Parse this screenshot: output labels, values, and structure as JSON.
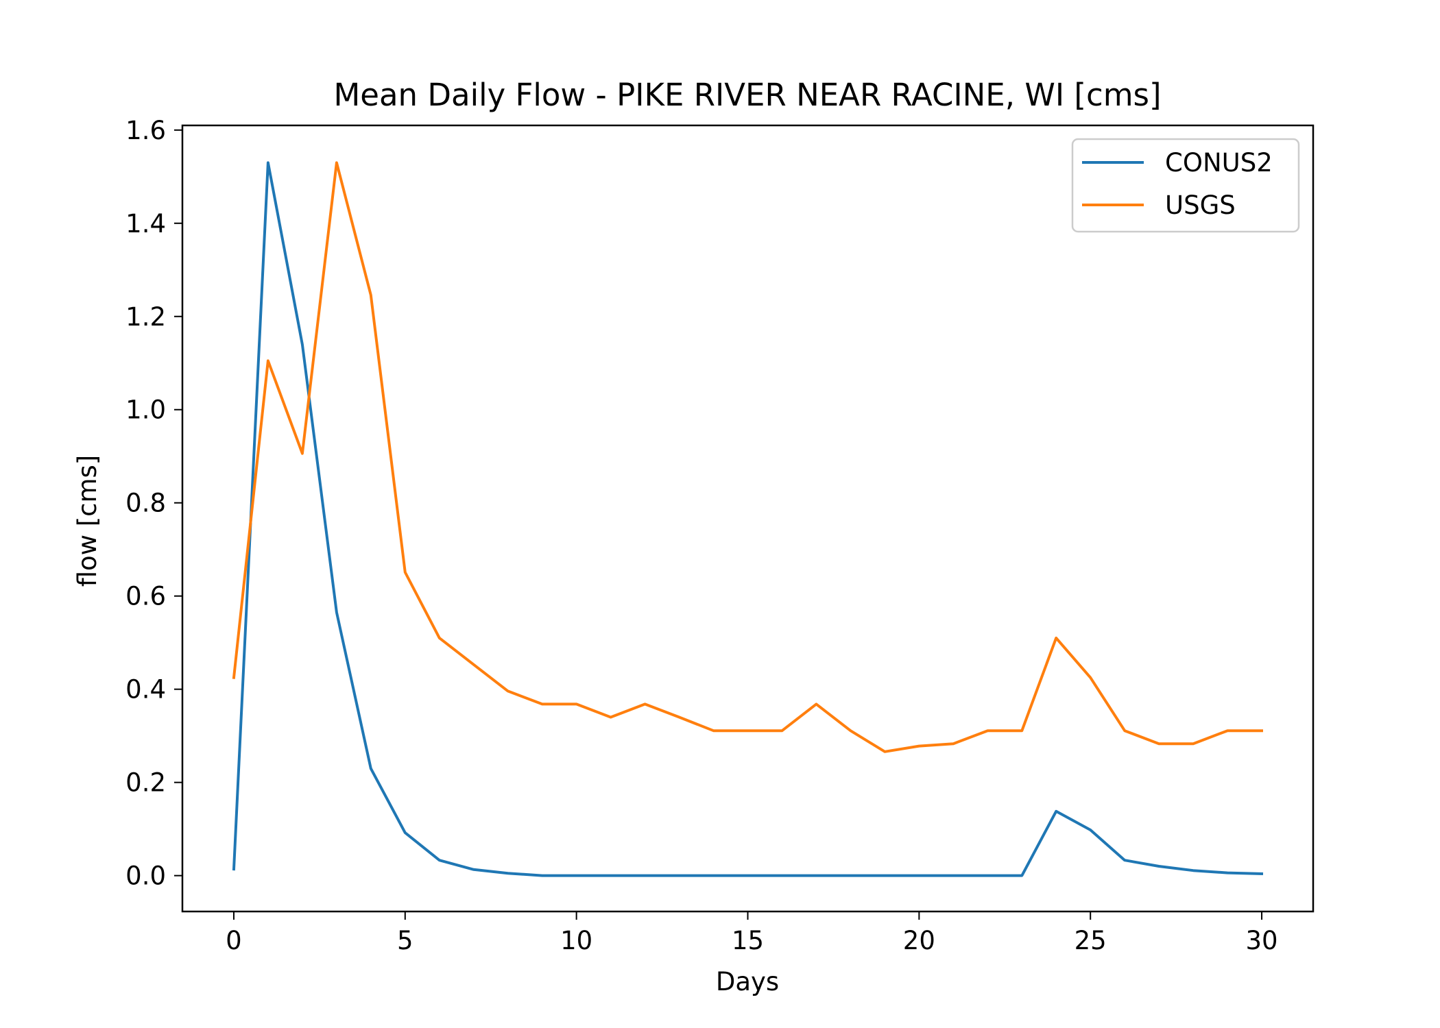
{
  "chart_data": {
    "type": "line",
    "title": "Mean Daily Flow - PIKE RIVER NEAR RACINE, WI [cms]",
    "xlabel": "Days",
    "ylabel": "flow [cms]",
    "xlim": [
      -1.5,
      31.5
    ],
    "ylim": [
      -0.077,
      1.61
    ],
    "xticks": [
      0,
      5,
      10,
      15,
      20,
      25,
      30
    ],
    "xtick_labels": [
      "0",
      "5",
      "10",
      "15",
      "20",
      "25",
      "30"
    ],
    "yticks": [
      0.0,
      0.2,
      0.4,
      0.6,
      0.8,
      1.0,
      1.2,
      1.4,
      1.6
    ],
    "ytick_labels": [
      "0.0",
      "0.2",
      "0.4",
      "0.6",
      "0.8",
      "1.0",
      "1.2",
      "1.4",
      "1.6"
    ],
    "grid": false,
    "legend_position": "top-right",
    "x": [
      0,
      1,
      2,
      3,
      4,
      5,
      6,
      7,
      8,
      9,
      10,
      11,
      12,
      13,
      14,
      15,
      16,
      17,
      18,
      19,
      20,
      21,
      22,
      23,
      24,
      25,
      26,
      27,
      28,
      29,
      30
    ],
    "series": [
      {
        "name": "CONUS2",
        "color": "#1f77b4",
        "values": [
          0.014,
          1.53,
          1.14,
          0.565,
          0.23,
          0.092,
          0.033,
          0.013,
          0.005,
          0.0,
          0.0,
          0.0,
          0.0,
          0.0,
          0.0,
          0.0,
          0.0,
          0.0,
          0.0,
          0.0,
          0.0,
          0.0,
          0.0,
          0.0,
          0.138,
          0.098,
          0.033,
          0.02,
          0.011,
          0.006,
          0.004
        ]
      },
      {
        "name": "USGS",
        "color": "#ff7f0e",
        "values": [
          0.425,
          1.105,
          0.906,
          1.53,
          1.246,
          0.651,
          0.51,
          0.453,
          0.396,
          0.368,
          0.368,
          0.34,
          0.368,
          0.34,
          0.311,
          0.311,
          0.311,
          0.368,
          0.311,
          0.266,
          0.278,
          0.283,
          0.311,
          0.311,
          0.51,
          0.425,
          0.311,
          0.283,
          0.283,
          0.311,
          0.311
        ]
      }
    ]
  }
}
